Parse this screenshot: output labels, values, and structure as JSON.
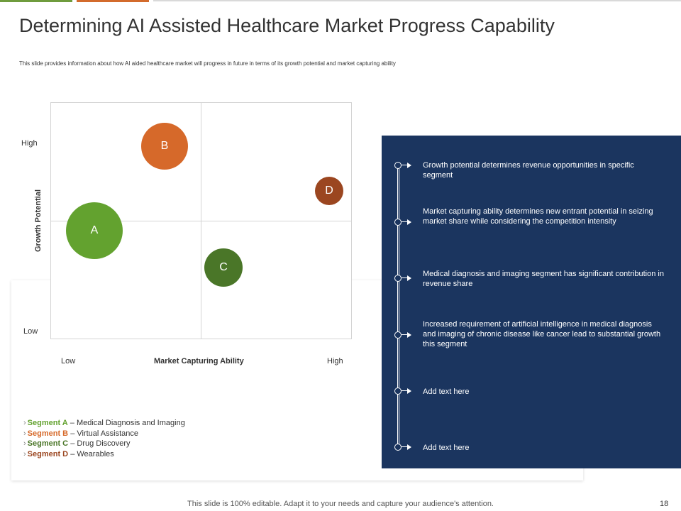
{
  "title": "Determining AI Assisted Healthcare Market Progress Capability",
  "subtitle": "This slide provides information about how AI aided healthcare market will progress in future in terms of its growth potential and market capturing ability",
  "matrix": {
    "y_axis_title": "Growth Potential",
    "x_axis_title": "Market Capturing  Ability",
    "y_high": "High",
    "y_low": "Low",
    "x_low": "Low",
    "x_high": "High",
    "bubbles": [
      {
        "label": "A",
        "color": "#63a22f"
      },
      {
        "label": "B",
        "color": "#d6692a"
      },
      {
        "label": "C",
        "color": "#4a7628"
      },
      {
        "label": "D",
        "color": "#9b4620"
      }
    ]
  },
  "legend": [
    {
      "chevron": "›",
      "segment": "Segment A",
      "desc": " – Medical Diagnosis and Imaging"
    },
    {
      "chevron": "›",
      "segment": "Segment B",
      "desc": " – Virtual Assistance"
    },
    {
      "chevron": "›",
      "segment": "Segment C",
      "desc": " – Drug Discovery"
    },
    {
      "chevron": "›",
      "segment": "Segment D",
      "desc": " – Wearables"
    }
  ],
  "panel": {
    "background": "#1b355f",
    "items": [
      "Growth potential determines revenue opportunities in specific segment",
      "Market capturing ability determines new entrant potential in seizing market share while considering the competition intensity",
      "Medical diagnosis and imaging segment has significant contribution in revenue share",
      "Increased requirement of artificial intelligence in medical diagnosis and imaging of chronic disease like cancer lead to substantial growth this segment",
      "Add text here",
      "Add text here"
    ]
  },
  "footer": "This slide is 100% editable. Adapt it to your needs and capture your audience's attention.",
  "page_number": "18"
}
